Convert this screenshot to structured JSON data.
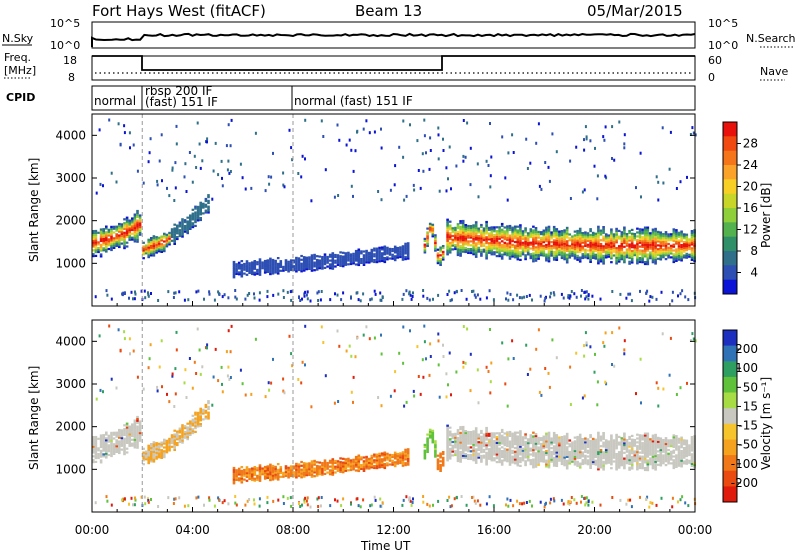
{
  "header": {
    "title": "Fort Hays West (fitACF)",
    "beam": "Beam 13",
    "date": "05/Mar/2015"
  },
  "panels": {
    "nsky": {
      "label": "N.Sky",
      "ticks": [
        "10^5",
        "10^0"
      ],
      "right_label": "N.Search",
      "right_ticks": [
        "10^5",
        "10^0"
      ]
    },
    "freq": {
      "label_line1": "Freq.",
      "label_line2": "[MHz]",
      "ticks": [
        "18",
        "8"
      ],
      "right_label": "Nave",
      "right_ticks": [
        "60",
        "0"
      ],
      "step_values_mhz": [
        18,
        11,
        18
      ],
      "step_changes_ut": [
        "02:00",
        "14:00"
      ]
    },
    "cpid": {
      "label": "CPID",
      "segments": [
        {
          "start_ut": "00:00",
          "lines": [
            "normal"
          ]
        },
        {
          "start_ut": "02:00",
          "lines": [
            "rbsp 200 IF",
            "(fast) 151 IF"
          ]
        },
        {
          "start_ut": "08:00",
          "lines": [
            "normal (fast) 151 IF"
          ]
        }
      ]
    }
  },
  "chart_data": [
    {
      "type": "heatmap",
      "name": "power",
      "ylabel": "Slant Range [km]",
      "yticks": [
        "1000",
        "2000",
        "3000",
        "4000"
      ],
      "ylim": [
        0,
        4500
      ],
      "xlim_hours": [
        0,
        24
      ],
      "colorbar": {
        "title": "Power [dB]",
        "ticks": [
          "28",
          "24",
          "20",
          "16",
          "12",
          "8",
          "4"
        ],
        "colors": [
          "#e8110c",
          "#f04a10",
          "#f5751a",
          "#fba22b",
          "#f8cf24",
          "#c8d62a",
          "#8fcf3a",
          "#54b24e",
          "#2f8f69",
          "#2f6f8a",
          "#2d4fb3",
          "#0b14d6"
        ]
      },
      "bands": [
        {
          "start_h": 0.0,
          "end_h": 1.9,
          "center_km": [
            1450,
            1550,
            1700,
            1900
          ],
          "width_km": 600
        },
        {
          "start_h": 2.0,
          "end_h": 4.6,
          "center_km": [
            1300,
            1500,
            1900,
            2400
          ],
          "width_km": 380
        },
        {
          "start_h": 5.6,
          "end_h": 12.6,
          "center_km": [
            850,
            950,
            1100,
            1280
          ],
          "width_km": 320
        },
        {
          "start_h": 13.2,
          "end_h": 14.0,
          "center_km": [
            1400,
            1900,
            1100,
            1300
          ],
          "width_km": 400
        },
        {
          "start_h": 14.1,
          "end_h": 24.0,
          "center_km": [
            1600,
            1450,
            1400,
            1400
          ],
          "width_km": 700
        }
      ]
    },
    {
      "type": "heatmap",
      "name": "velocity",
      "ylabel": "Slant Range [km]",
      "yticks": [
        "1000",
        "2000",
        "3000",
        "4000"
      ],
      "ylim": [
        0,
        4500
      ],
      "xlim_hours": [
        0,
        24
      ],
      "xticks": [
        "00:00",
        "04:00",
        "08:00",
        "12:00",
        "16:00",
        "20:00",
        "00:00"
      ],
      "xlabel": "Time UT",
      "colorbar": {
        "title": "Velocity [m s⁻¹]",
        "ticks": [
          "200",
          "100",
          "50",
          "15",
          "-15",
          "-50",
          "-100",
          "-200"
        ],
        "colors": [
          "#1d2fbf",
          "#2f72b6",
          "#2e9f61",
          "#5fc23a",
          "#a8dc45",
          "#c8c8c0",
          "#f6c52e",
          "#f5a21f",
          "#f07818",
          "#ea4a10",
          "#e01b0c"
        ]
      }
    }
  ]
}
